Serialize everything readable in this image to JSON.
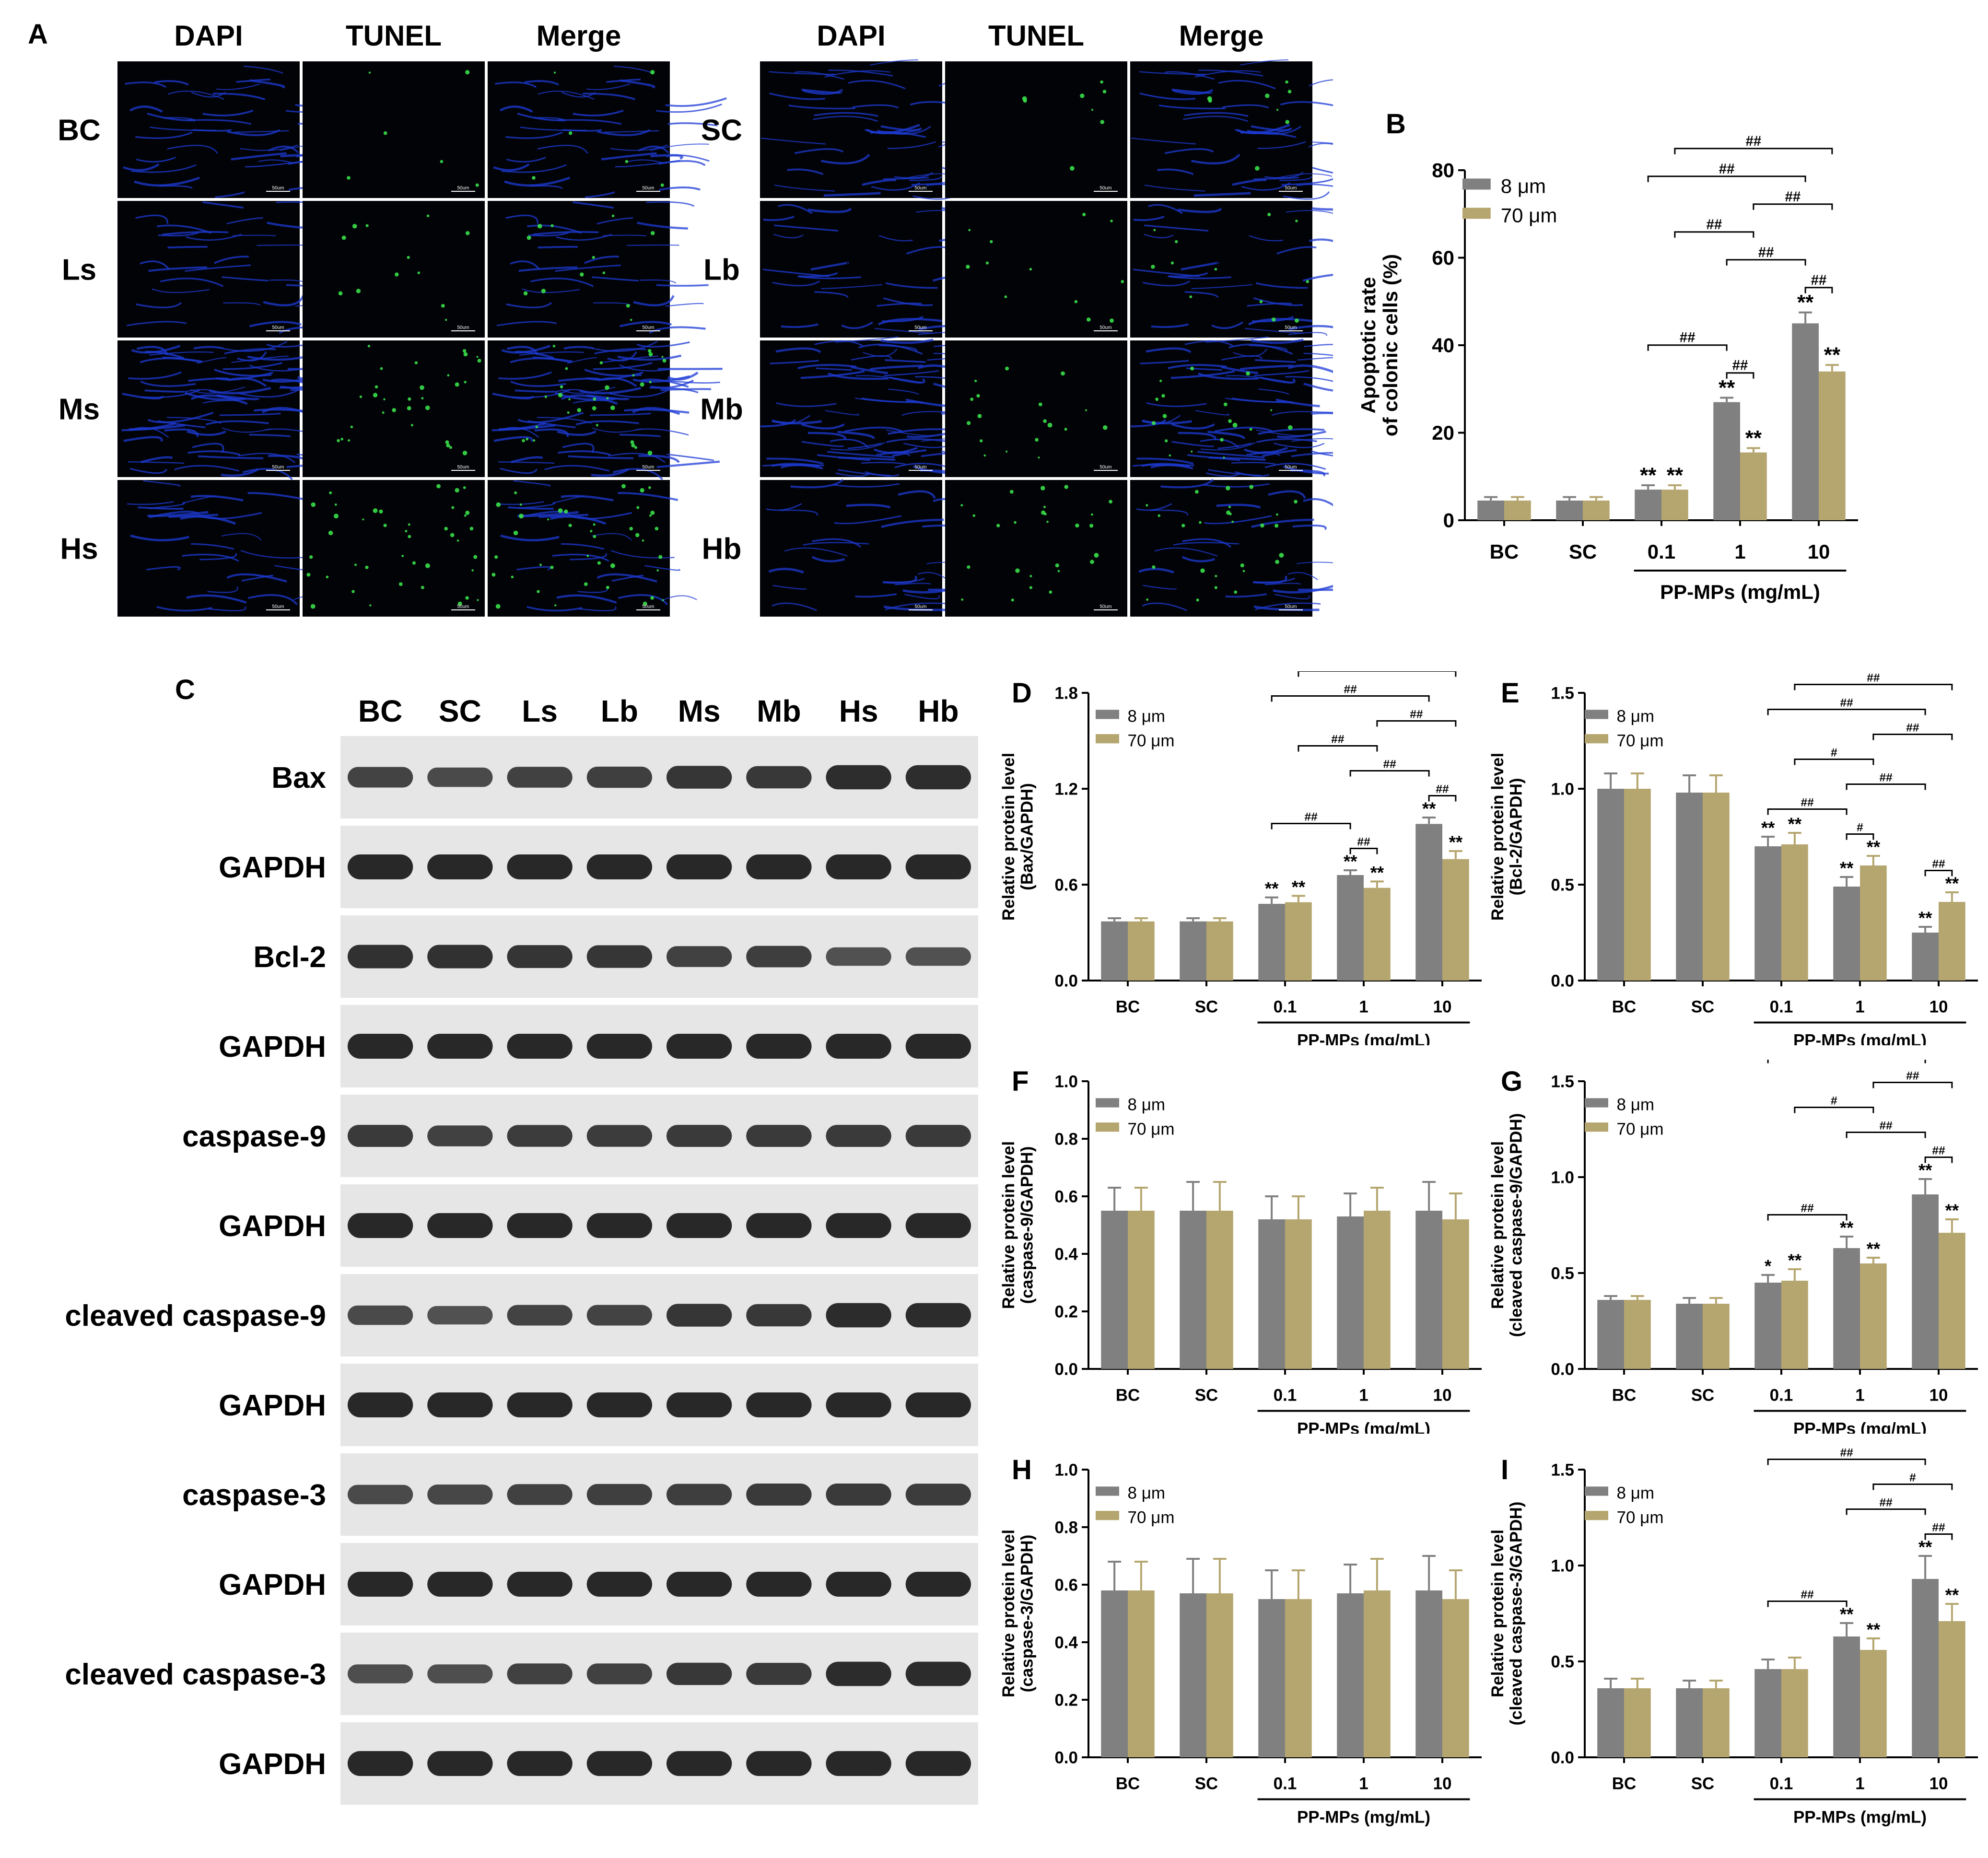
{
  "panels": {
    "A": "A",
    "B": "B",
    "C": "C",
    "D": "D",
    "E": "E",
    "F": "F",
    "G": "G",
    "H": "H",
    "I": "I"
  },
  "colors": {
    "s8": "#808080",
    "s70": "#B5A66F",
    "micro_bg": "#020306",
    "nuclei": "#1e3bd6",
    "tunel": "#38e04a"
  },
  "micrograph": {
    "column_headers": [
      "DAPI",
      "TUNEL",
      "Merge"
    ],
    "left_rows": [
      "BC",
      "Ls",
      "Ms",
      "Hs"
    ],
    "right_rows": [
      "SC",
      "Lb",
      "Mb",
      "Hb"
    ],
    "scale_bar": "50um"
  },
  "western_blot": {
    "lanes": [
      "BC",
      "SC",
      "Ls",
      "Lb",
      "Ms",
      "Mb",
      "Hs",
      "Hb"
    ],
    "rows": [
      "Bax",
      "GAPDH",
      "Bcl-2",
      "GAPDH",
      "caspase-9",
      "GAPDH",
      "cleaved caspase-9",
      "GAPDH",
      "caspase-3",
      "GAPDH",
      "cleaved caspase-3",
      "GAPDH"
    ],
    "band_intensity": [
      [
        0.7,
        0.62,
        0.72,
        0.74,
        0.85,
        0.82,
        0.95,
        0.95
      ],
      [
        1,
        1,
        1,
        1,
        1,
        1,
        1,
        1
      ],
      [
        0.9,
        0.9,
        0.86,
        0.84,
        0.72,
        0.76,
        0.55,
        0.55
      ],
      [
        1,
        1,
        1,
        1,
        1,
        1,
        1,
        1
      ],
      [
        0.8,
        0.72,
        0.78,
        0.78,
        0.8,
        0.8,
        0.8,
        0.8
      ],
      [
        1,
        1,
        1,
        1,
        1,
        1,
        1,
        1
      ],
      [
        0.62,
        0.55,
        0.7,
        0.7,
        0.85,
        0.82,
        0.96,
        0.96
      ],
      [
        1,
        1,
        1,
        1,
        1,
        1,
        1,
        1
      ],
      [
        0.62,
        0.66,
        0.72,
        0.74,
        0.76,
        0.8,
        0.8,
        0.78
      ],
      [
        1,
        1,
        1,
        1,
        1,
        1,
        1,
        1
      ],
      [
        0.58,
        0.58,
        0.72,
        0.72,
        0.82,
        0.8,
        0.96,
        0.96
      ],
      [
        1,
        1,
        1,
        1,
        1,
        1,
        1,
        1
      ]
    ]
  },
  "chart_data": [
    {
      "panel": "B",
      "type": "bar",
      "categories": [
        "BC",
        "SC",
        "0.1",
        "1",
        "10"
      ],
      "group_label": "PP-MPs (mg/mL)",
      "ylabel": [
        "Apoptotic rate",
        "of colonic cells (%)"
      ],
      "ylim": [
        0,
        80
      ],
      "yticks": [
        "0",
        "20",
        "40",
        "60",
        "80"
      ],
      "ytick_values": [
        0,
        20,
        40,
        60,
        80
      ],
      "legend": [
        "8 μm",
        "70 μm"
      ],
      "series": [
        {
          "name": "8 μm",
          "values": [
            4.5,
            4.5,
            7,
            27,
            45
          ],
          "errors": [
            0.8,
            0.8,
            1,
            1,
            2.5
          ],
          "marks": [
            "",
            "",
            "**",
            "**",
            "**"
          ]
        },
        {
          "name": "70 μm",
          "values": [
            4.5,
            4.5,
            7,
            15.5,
            34
          ],
          "errors": [
            0.8,
            0.8,
            1,
            1,
            1.5
          ],
          "marks": [
            "",
            "",
            "**",
            "**",
            "**"
          ]
        }
      ],
      "comparisons": [
        {
          "a": [
            3,
            0
          ],
          "b": [
            3,
            1
          ],
          "label": "##"
        },
        {
          "a": [
            4,
            0
          ],
          "b": [
            4,
            1
          ],
          "label": "##"
        },
        {
          "a": [
            2,
            0
          ],
          "b": [
            3,
            0
          ],
          "label": "##"
        },
        {
          "a": [
            3,
            0
          ],
          "b": [
            4,
            0
          ],
          "label": "##"
        },
        {
          "a": [
            2,
            0
          ],
          "b": [
            4,
            0
          ],
          "label": "##"
        },
        {
          "a": [
            2,
            1
          ],
          "b": [
            3,
            1
          ],
          "label": "##"
        },
        {
          "a": [
            3,
            1
          ],
          "b": [
            4,
            1
          ],
          "label": "##"
        },
        {
          "a": [
            2,
            1
          ],
          "b": [
            4,
            1
          ],
          "label": "##"
        }
      ]
    },
    {
      "panel": "D",
      "type": "bar",
      "categories": [
        "BC",
        "SC",
        "0.1",
        "1",
        "10"
      ],
      "group_label": "PP-MPs (mg/mL)",
      "ylabel": [
        "Relative protein level",
        "(Bax/GAPDH)"
      ],
      "ylim": [
        0,
        1.8
      ],
      "yticks": [
        "0.0",
        "0.6",
        "1.2",
        "1.8"
      ],
      "ytick_values": [
        0,
        0.6,
        1.2,
        1.8
      ],
      "legend": [
        "8 μm",
        "70 μm"
      ],
      "series": [
        {
          "name": "8 μm",
          "values": [
            0.37,
            0.37,
            0.48,
            0.66,
            0.98
          ],
          "errors": [
            0.02,
            0.02,
            0.04,
            0.03,
            0.04
          ],
          "marks": [
            "",
            "",
            "**",
            "**",
            "**"
          ]
        },
        {
          "name": "70 μm",
          "values": [
            0.37,
            0.37,
            0.49,
            0.58,
            0.76
          ],
          "errors": [
            0.02,
            0.02,
            0.04,
            0.04,
            0.05
          ],
          "marks": [
            "",
            "",
            "**",
            "**",
            "**"
          ]
        }
      ],
      "comparisons": [
        {
          "a": [
            3,
            0
          ],
          "b": [
            3,
            1
          ],
          "label": "##"
        },
        {
          "a": [
            4,
            0
          ],
          "b": [
            4,
            1
          ],
          "label": "##"
        },
        {
          "a": [
            2,
            0
          ],
          "b": [
            3,
            0
          ],
          "label": "##"
        },
        {
          "a": [
            3,
            0
          ],
          "b": [
            4,
            0
          ],
          "label": "##"
        },
        {
          "a": [
            2,
            0
          ],
          "b": [
            4,
            0
          ],
          "label": "##"
        },
        {
          "a": [
            2,
            1
          ],
          "b": [
            3,
            1
          ],
          "label": "##"
        },
        {
          "a": [
            3,
            1
          ],
          "b": [
            4,
            1
          ],
          "label": "##"
        },
        {
          "a": [
            2,
            1
          ],
          "b": [
            4,
            1
          ],
          "label": "##"
        }
      ]
    },
    {
      "panel": "E",
      "type": "bar",
      "categories": [
        "BC",
        "SC",
        "0.1",
        "1",
        "10"
      ],
      "group_label": "PP-MPs (mg/mL)",
      "ylabel": [
        "Relative protein level",
        "(Bcl-2/GAPDH)"
      ],
      "ylim": [
        0,
        1.5
      ],
      "yticks": [
        "0.0",
        "0.5",
        "1.0",
        "1.5"
      ],
      "ytick_values": [
        0,
        0.5,
        1.0,
        1.5
      ],
      "legend": [
        "8 μm",
        "70 μm"
      ],
      "series": [
        {
          "name": "8 μm",
          "values": [
            1.0,
            0.98,
            0.7,
            0.49,
            0.25
          ],
          "errors": [
            0.08,
            0.09,
            0.05,
            0.05,
            0.03
          ],
          "marks": [
            "",
            "",
            "**",
            "**",
            "**"
          ]
        },
        {
          "name": "70 μm",
          "values": [
            1.0,
            0.98,
            0.71,
            0.6,
            0.41
          ],
          "errors": [
            0.08,
            0.09,
            0.06,
            0.05,
            0.05
          ],
          "marks": [
            "",
            "",
            "**",
            "**",
            "**"
          ]
        }
      ],
      "comparisons": [
        {
          "a": [
            3,
            0
          ],
          "b": [
            3,
            1
          ],
          "label": "#"
        },
        {
          "a": [
            4,
            0
          ],
          "b": [
            4,
            1
          ],
          "label": "##"
        },
        {
          "a": [
            2,
            0
          ],
          "b": [
            3,
            0
          ],
          "label": "##"
        },
        {
          "a": [
            3,
            0
          ],
          "b": [
            4,
            0
          ],
          "label": "##"
        },
        {
          "a": [
            2,
            0
          ],
          "b": [
            4,
            0
          ],
          "label": "##"
        },
        {
          "a": [
            2,
            1
          ],
          "b": [
            3,
            1
          ],
          "label": "#"
        },
        {
          "a": [
            3,
            1
          ],
          "b": [
            4,
            1
          ],
          "label": "##"
        },
        {
          "a": [
            2,
            1
          ],
          "b": [
            4,
            1
          ],
          "label": "##"
        }
      ]
    },
    {
      "panel": "F",
      "type": "bar",
      "categories": [
        "BC",
        "SC",
        "0.1",
        "1",
        "10"
      ],
      "group_label": "PP-MPs (mg/mL)",
      "ylabel": [
        "Relative protein level",
        "(caspase-9/GAPDH)"
      ],
      "ylim": [
        0,
        1.0
      ],
      "yticks": [
        "0.0",
        "0.2",
        "0.4",
        "0.6",
        "0.8",
        "1.0"
      ],
      "ytick_values": [
        0,
        0.2,
        0.4,
        0.6,
        0.8,
        1.0
      ],
      "legend": [
        "8 μm",
        "70 μm"
      ],
      "series": [
        {
          "name": "8 μm",
          "values": [
            0.55,
            0.55,
            0.52,
            0.53,
            0.55
          ],
          "errors": [
            0.08,
            0.1,
            0.08,
            0.08,
            0.1
          ],
          "marks": [
            "",
            "",
            "",
            "",
            ""
          ]
        },
        {
          "name": "70 μm",
          "values": [
            0.55,
            0.55,
            0.52,
            0.55,
            0.52
          ],
          "errors": [
            0.08,
            0.1,
            0.08,
            0.08,
            0.09
          ],
          "marks": [
            "",
            "",
            "",
            "",
            ""
          ]
        }
      ],
      "comparisons": []
    },
    {
      "panel": "G",
      "type": "bar",
      "categories": [
        "BC",
        "SC",
        "0.1",
        "1",
        "10"
      ],
      "group_label": "PP-MPs (mg/mL)",
      "ylabel": [
        "Relative protein level",
        "(cleaved caspase-9/GAPDH)"
      ],
      "ylim": [
        0,
        1.5
      ],
      "yticks": [
        "0.0",
        "0.5",
        "1.0",
        "1.5"
      ],
      "ytick_values": [
        0,
        0.5,
        1.0,
        1.5
      ],
      "legend": [
        "8 μm",
        "70 μm"
      ],
      "series": [
        {
          "name": "8 μm",
          "values": [
            0.36,
            0.34,
            0.45,
            0.63,
            0.91
          ],
          "errors": [
            0.02,
            0.03,
            0.04,
            0.06,
            0.08
          ],
          "marks": [
            "",
            "",
            "*",
            "**",
            "**"
          ]
        },
        {
          "name": "70 μm",
          "values": [
            0.36,
            0.34,
            0.46,
            0.55,
            0.71
          ],
          "errors": [
            0.02,
            0.03,
            0.06,
            0.03,
            0.07
          ],
          "marks": [
            "",
            "",
            "**",
            "**",
            "**"
          ]
        }
      ],
      "comparisons": [
        {
          "a": [
            4,
            0
          ],
          "b": [
            4,
            1
          ],
          "label": "##"
        },
        {
          "a": [
            2,
            0
          ],
          "b": [
            3,
            0
          ],
          "label": "##"
        },
        {
          "a": [
            3,
            0
          ],
          "b": [
            4,
            0
          ],
          "label": "##"
        },
        {
          "a": [
            2,
            0
          ],
          "b": [
            4,
            0
          ],
          "label": "##"
        },
        {
          "a": [
            2,
            1
          ],
          "b": [
            3,
            1
          ],
          "label": "#"
        },
        {
          "a": [
            3,
            1
          ],
          "b": [
            4,
            1
          ],
          "label": "##"
        },
        {
          "a": [
            2,
            1
          ],
          "b": [
            4,
            1
          ],
          "label": "##"
        }
      ]
    },
    {
      "panel": "H",
      "type": "bar",
      "categories": [
        "BC",
        "SC",
        "0.1",
        "1",
        "10"
      ],
      "group_label": "PP-MPs (mg/mL)",
      "ylabel": [
        "Relative protein level",
        "(caspase-3/GAPDH)"
      ],
      "ylim": [
        0,
        1.0
      ],
      "yticks": [
        "0.0",
        "0.2",
        "0.4",
        "0.6",
        "0.8",
        "1.0"
      ],
      "ytick_values": [
        0,
        0.2,
        0.4,
        0.6,
        0.8,
        1.0
      ],
      "legend": [
        "8 μm",
        "70 μm"
      ],
      "series": [
        {
          "name": "8 μm",
          "values": [
            0.58,
            0.57,
            0.55,
            0.57,
            0.58
          ],
          "errors": [
            0.1,
            0.12,
            0.1,
            0.1,
            0.12
          ],
          "marks": [
            "",
            "",
            "",
            "",
            ""
          ]
        },
        {
          "name": "70 μm",
          "values": [
            0.58,
            0.57,
            0.55,
            0.58,
            0.55
          ],
          "errors": [
            0.1,
            0.12,
            0.1,
            0.11,
            0.1
          ],
          "marks": [
            "",
            "",
            "",
            "",
            ""
          ]
        }
      ],
      "comparisons": []
    },
    {
      "panel": "I",
      "type": "bar",
      "categories": [
        "BC",
        "SC",
        "0.1",
        "1",
        "10"
      ],
      "group_label": "PP-MPs (mg/mL)",
      "ylabel": [
        "Relative protein level",
        "(cleaved caspase-3/GAPDH)"
      ],
      "ylim": [
        0,
        1.5
      ],
      "yticks": [
        "0.0",
        "0.5",
        "1.0",
        "1.5"
      ],
      "ytick_values": [
        0,
        0.5,
        1.0,
        1.5
      ],
      "legend": [
        "8 μm",
        "70 μm"
      ],
      "series": [
        {
          "name": "8 μm",
          "values": [
            0.36,
            0.36,
            0.46,
            0.63,
            0.93
          ],
          "errors": [
            0.05,
            0.04,
            0.05,
            0.07,
            0.12
          ],
          "marks": [
            "",
            "",
            "",
            "**",
            "**"
          ]
        },
        {
          "name": "70 μm",
          "values": [
            0.36,
            0.36,
            0.46,
            0.56,
            0.71
          ],
          "errors": [
            0.05,
            0.04,
            0.06,
            0.06,
            0.09
          ],
          "marks": [
            "",
            "",
            "",
            "**",
            "**"
          ]
        }
      ],
      "comparisons": [
        {
          "a": [
            4,
            0
          ],
          "b": [
            4,
            1
          ],
          "label": "##"
        },
        {
          "a": [
            2,
            0
          ],
          "b": [
            3,
            0
          ],
          "label": "##"
        },
        {
          "a": [
            3,
            0
          ],
          "b": [
            4,
            0
          ],
          "label": "##"
        },
        {
          "a": [
            2,
            0
          ],
          "b": [
            4,
            0
          ],
          "label": "##"
        },
        {
          "a": [
            3,
            1
          ],
          "b": [
            4,
            1
          ],
          "label": "#"
        },
        {
          "a": [
            2,
            1
          ],
          "b": [
            4,
            1
          ],
          "label": "##"
        }
      ]
    }
  ]
}
